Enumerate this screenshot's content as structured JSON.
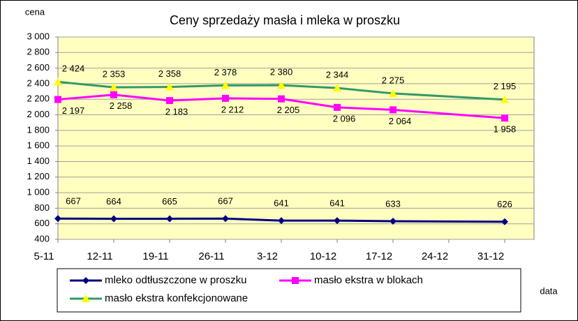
{
  "chart_data": {
    "type": "line",
    "title": "Ceny sprzedaży masła i mleka w proszku",
    "y_label": "cena",
    "x_label": "data",
    "xticks": [
      "5-11",
      "12-11",
      "19-11",
      "26-11",
      "3-12",
      "10-12",
      "17-12",
      "24-12",
      "31-12"
    ],
    "x": [
      "5-11",
      "12-11",
      "19-11",
      "26-11",
      "3-12",
      "10-12",
      "17-12",
      "31-12"
    ],
    "ylim": [
      400,
      3000
    ],
    "yticks": [
      {
        "value": 400,
        "label": "400"
      },
      {
        "value": 600,
        "label": "600"
      },
      {
        "value": 800,
        "label": "800"
      },
      {
        "value": 1000,
        "label": "1 000"
      },
      {
        "value": 1200,
        "label": "1 200"
      },
      {
        "value": 1400,
        "label": "1 400"
      },
      {
        "value": 1600,
        "label": "1 600"
      },
      {
        "value": 1800,
        "label": "1 800"
      },
      {
        "value": 2000,
        "label": "2 000"
      },
      {
        "value": 2200,
        "label": "2 200"
      },
      {
        "value": 2400,
        "label": "2 400"
      },
      {
        "value": 2600,
        "label": "2 600"
      },
      {
        "value": 2800,
        "label": "2 800"
      },
      {
        "value": 3000,
        "label": "3 000"
      }
    ],
    "grid": true,
    "series": [
      {
        "name": "mleko odtłuszczone w proszku",
        "color": "#000080",
        "marker": "diamond",
        "values": [
          667,
          664,
          665,
          667,
          641,
          641,
          633,
          626
        ],
        "value_labels": [
          "667",
          "664",
          "665",
          "667",
          "641",
          "641",
          "633",
          "626"
        ]
      },
      {
        "name": "masło ekstra w blokach",
        "color": "#ff00ff",
        "marker": "square",
        "values": [
          2197,
          2258,
          2183,
          2212,
          2205,
          2096,
          2064,
          1958
        ],
        "value_labels": [
          "2 197",
          "2 258",
          "2 183",
          "2 212",
          "2 205",
          "2 096",
          "2 064",
          "1 958"
        ]
      },
      {
        "name": "masło ekstra konfekcjonowane",
        "color": "#339966",
        "marker_color": "#ffff00",
        "marker": "triangle",
        "values": [
          2424,
          2353,
          2358,
          2378,
          2380,
          2344,
          2275,
          2195
        ],
        "value_labels": [
          "2 424",
          "2 353",
          "2 358",
          "2 378",
          "2 380",
          "2 344",
          "2 275",
          "2 195"
        ]
      }
    ]
  }
}
